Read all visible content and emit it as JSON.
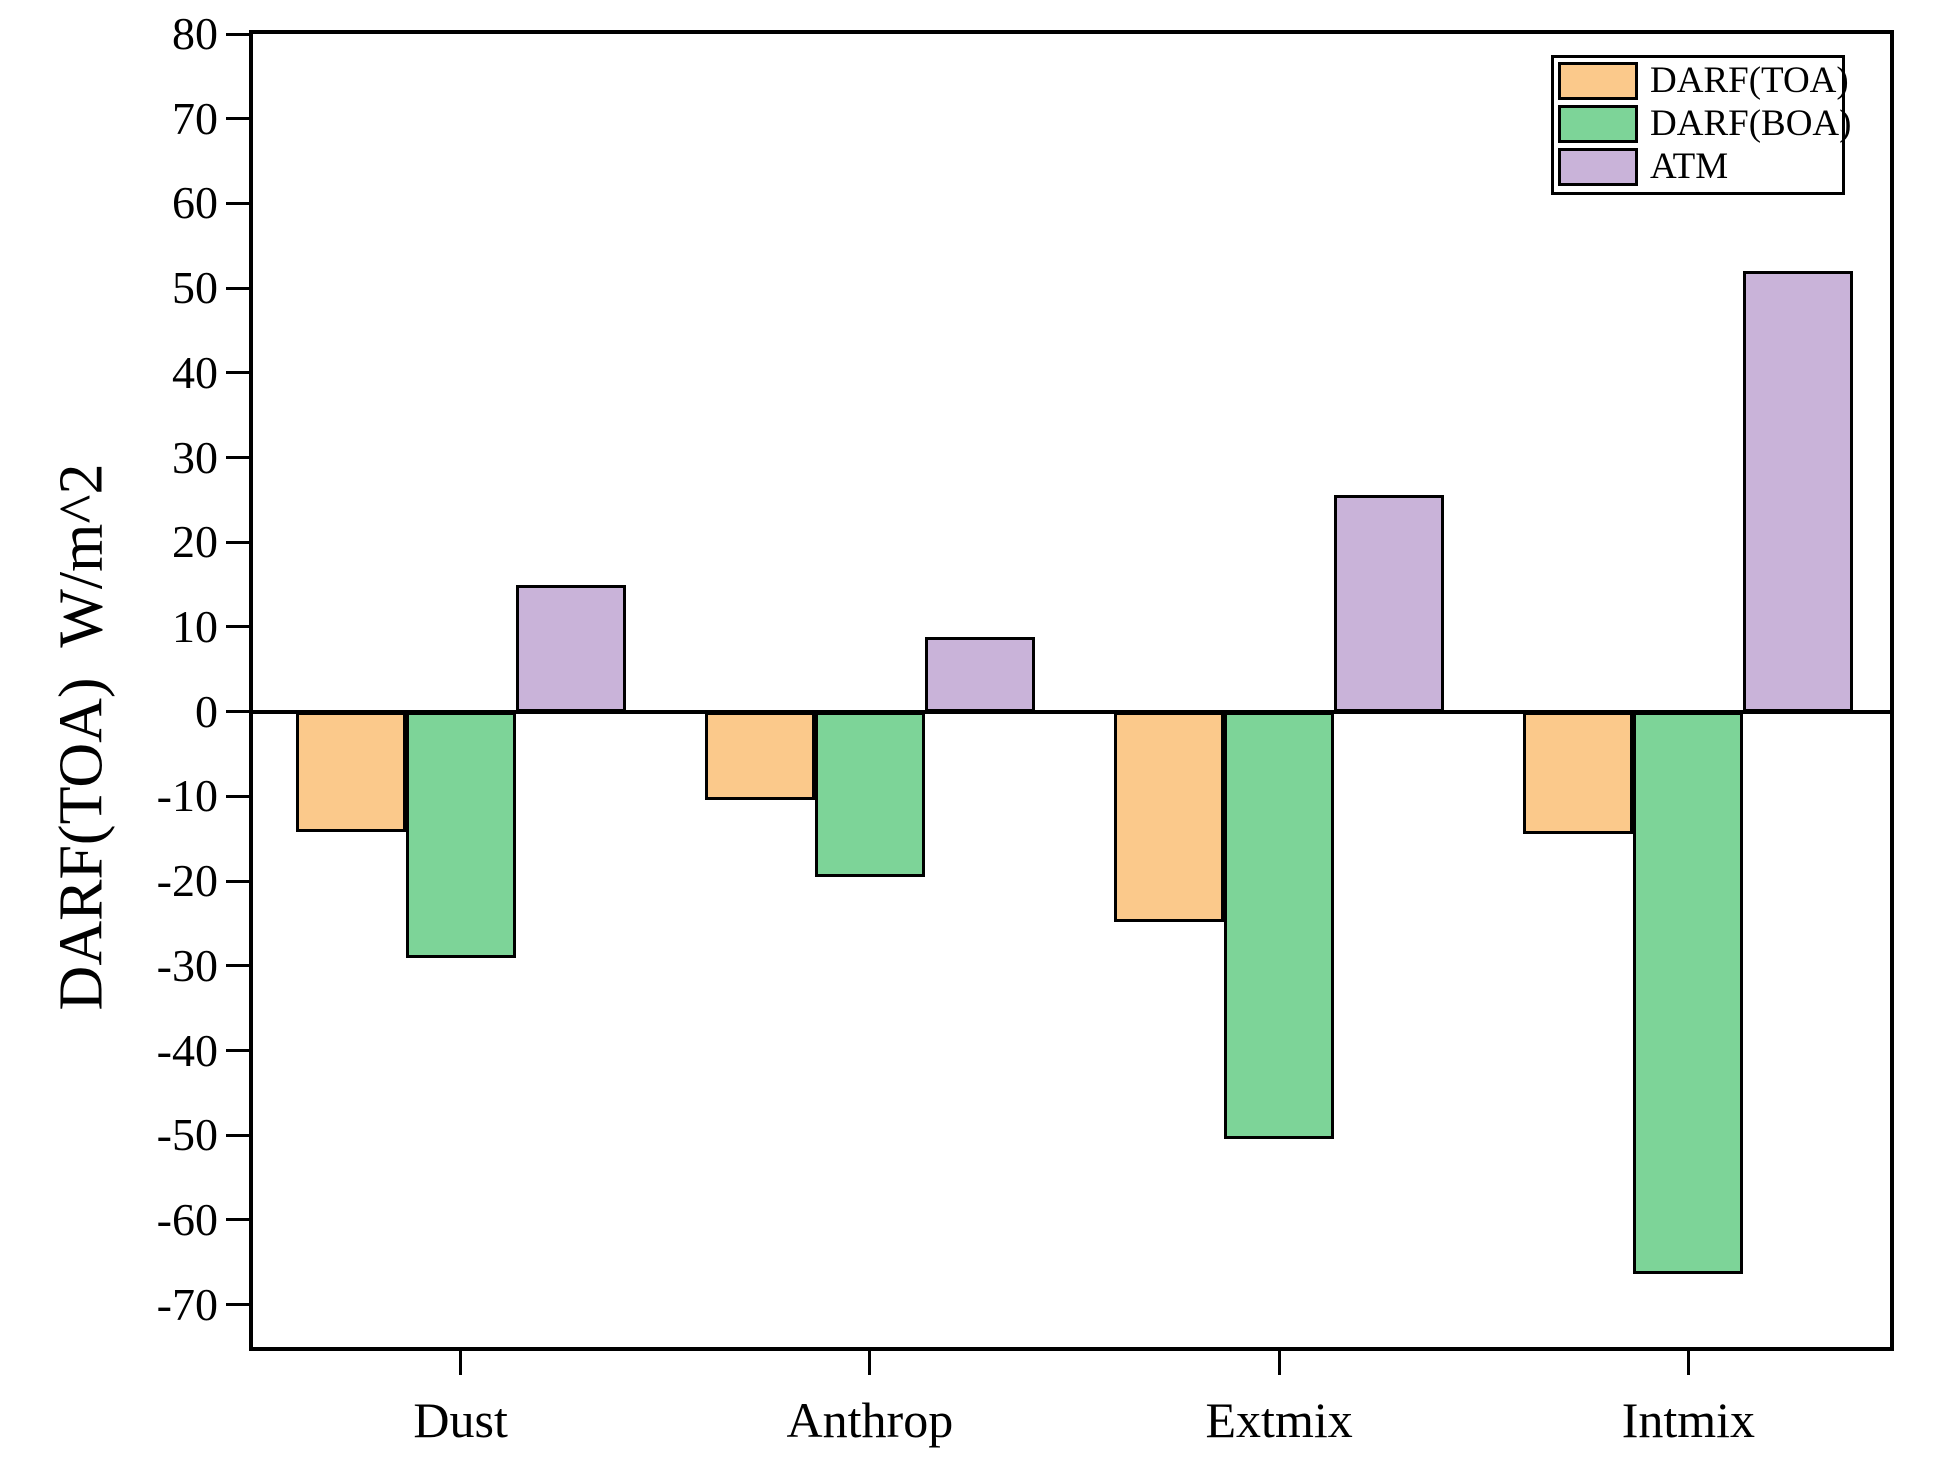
{
  "figure": {
    "background_color": "#FFFFFF",
    "frame_color": "#000000"
  },
  "chart_data": {
    "type": "bar",
    "title": "",
    "xlabel": "",
    "ylabel": "DARF(TOA)  W/m^2",
    "categories": [
      "Dust",
      "Anthrop",
      "Extmix",
      "Intmix"
    ],
    "series": [
      {
        "name": "DARF(TOA)",
        "color": "#FBC98B",
        "values": [
          -14.2,
          -10.4,
          -24.8,
          -14.4
        ]
      },
      {
        "name": "DARF(BOA)",
        "color": "#7DD498",
        "values": [
          -29.1,
          -19.5,
          -50.5,
          -66.4
        ]
      },
      {
        "name": "ATM",
        "color": "#C9B3D9",
        "values": [
          14.9,
          8.8,
          25.6,
          52.0
        ]
      }
    ],
    "ylim": [
      -75,
      80
    ],
    "yticks": [
      80,
      70,
      60,
      50,
      40,
      30,
      20,
      10,
      0,
      -10,
      -20,
      -30,
      -40,
      -50,
      -60,
      -70
    ],
    "grid": false,
    "bar_border_color": "#000000",
    "zero_line": true,
    "legend_position": "top-right"
  }
}
